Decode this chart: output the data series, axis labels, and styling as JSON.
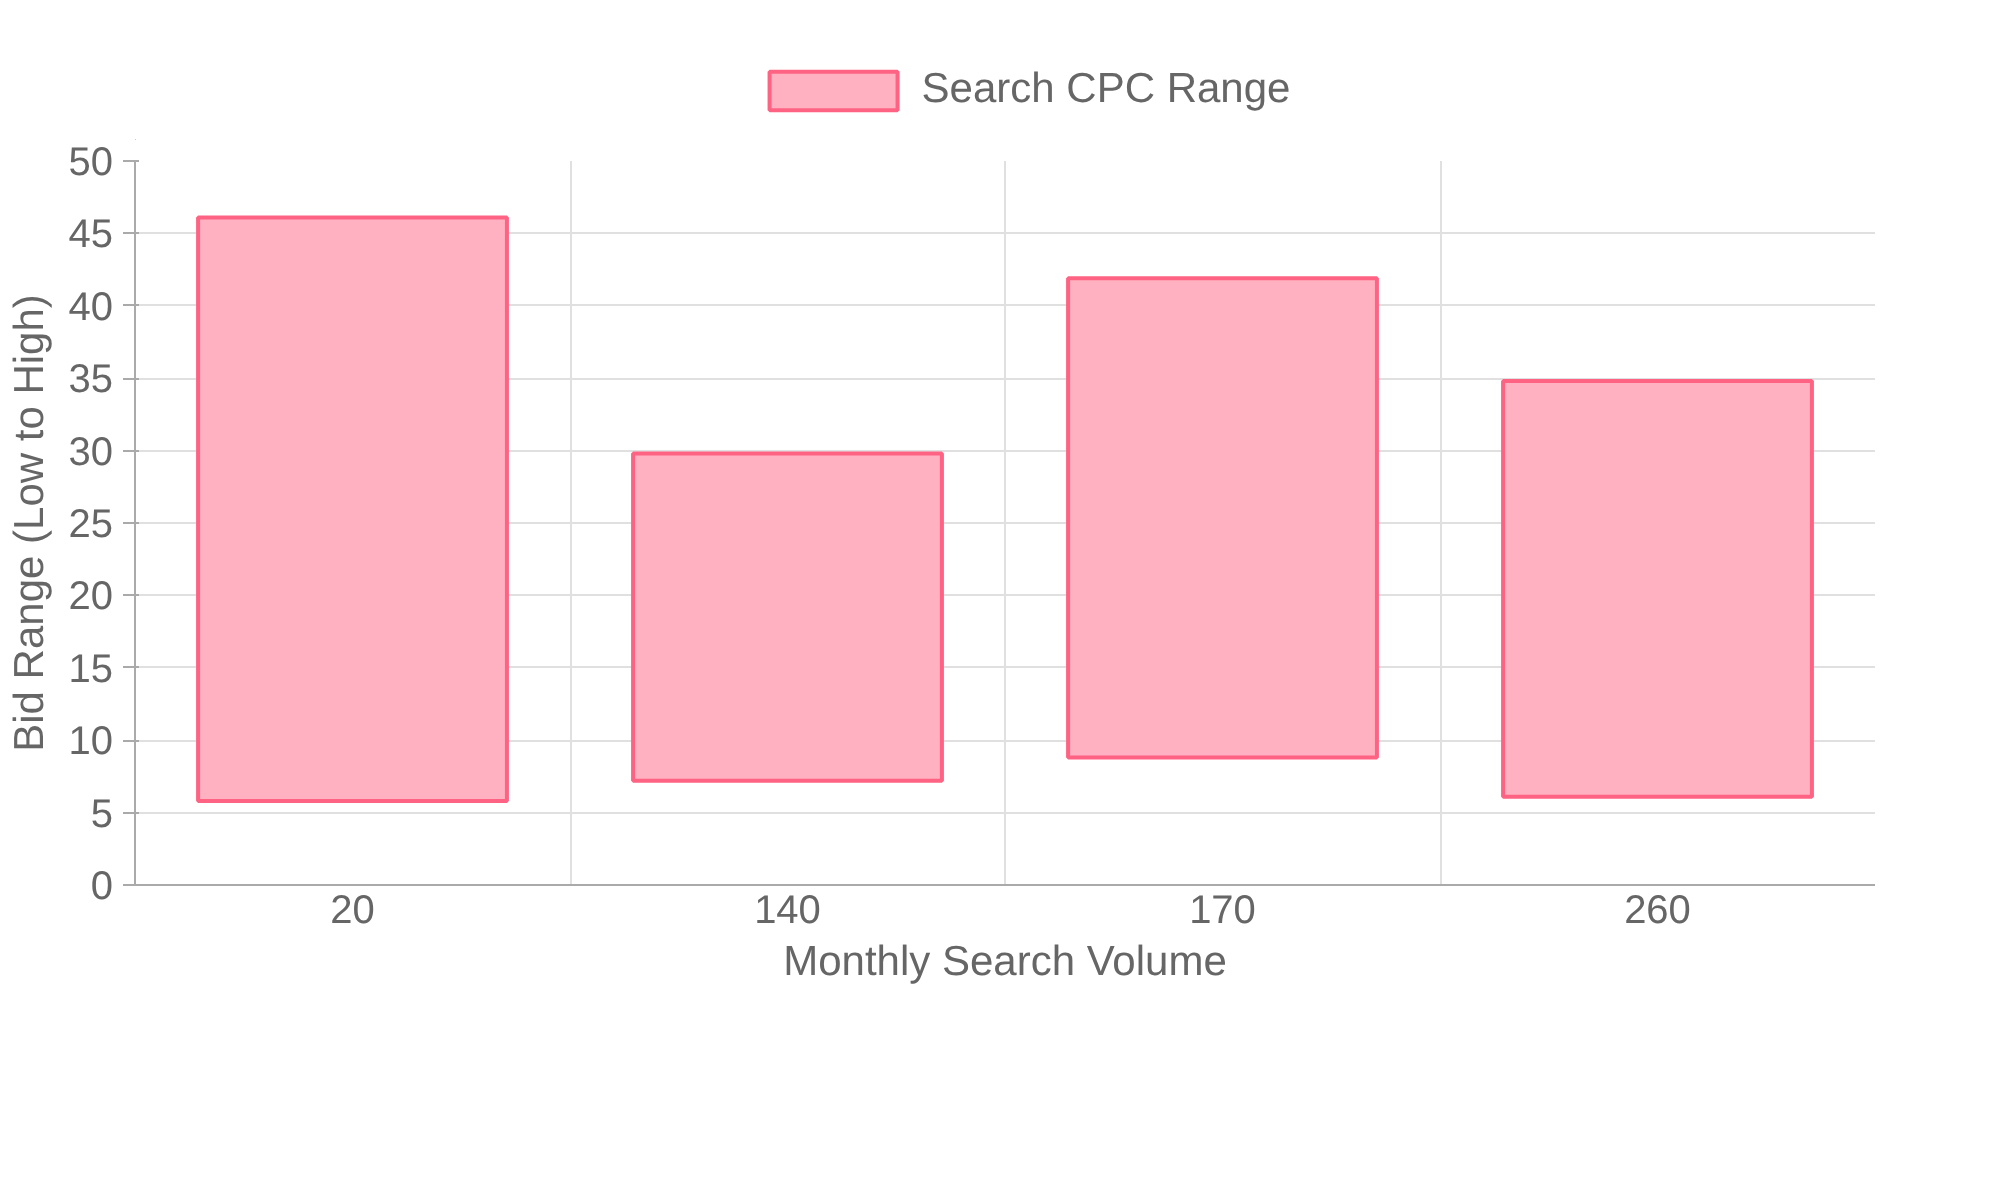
{
  "chart_data": {
    "type": "bar",
    "xlabel": "Monthly Search Volume",
    "ylabel": "Bid Range (Low to High)",
    "categories": [
      "20",
      "140",
      "170",
      "260"
    ],
    "series": [
      {
        "name": "Search CPC Range",
        "color": "#ffb1c1",
        "values": [
          40.3,
          22.6,
          33.1,
          28.7
        ],
        "base": [
          5.8,
          7.2,
          8.8,
          6.1
        ]
      }
    ],
    "ylim": [
      0,
      50
    ],
    "yticks": [
      0,
      5,
      10,
      15,
      20,
      25,
      30,
      35,
      40,
      45,
      50
    ],
    "grid": true,
    "legend": "top"
  }
}
